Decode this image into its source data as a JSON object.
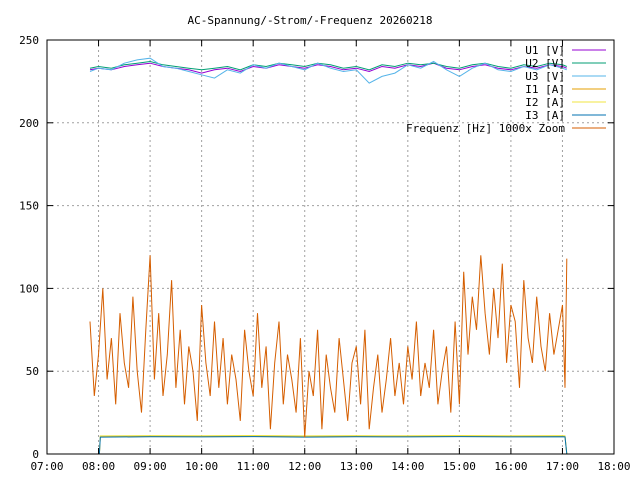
{
  "chart_data": {
    "type": "line",
    "title": "AC-Spannung/-Strom/-Frequenz 20260218",
    "xlabel": "",
    "ylabel": "",
    "x_range": [
      "07:00",
      "18:00"
    ],
    "x_ticks": [
      "07:00",
      "08:00",
      "09:00",
      "10:00",
      "11:00",
      "12:00",
      "13:00",
      "14:00",
      "15:00",
      "16:00",
      "17:00",
      "18:00"
    ],
    "ylim": [
      0,
      250
    ],
    "y_ticks": [
      "0",
      "50",
      "100",
      "150",
      "200",
      "250"
    ],
    "grid": true,
    "legend_position": "top-right",
    "series": [
      {
        "name": "U1 [V]",
        "color": "#9400d3",
        "x": [
          "07:50",
          "08:00",
          "08:15",
          "08:30",
          "08:45",
          "09:00",
          "09:15",
          "09:30",
          "09:45",
          "10:00",
          "10:15",
          "10:30",
          "10:45",
          "11:00",
          "11:15",
          "11:30",
          "11:45",
          "12:00",
          "12:15",
          "12:30",
          "12:45",
          "13:00",
          "13:15",
          "13:30",
          "13:45",
          "14:00",
          "14:15",
          "14:30",
          "14:45",
          "15:00",
          "15:15",
          "15:30",
          "15:45",
          "16:00",
          "16:15",
          "16:30",
          "16:45",
          "17:00",
          "17:05"
        ],
        "values": [
          232,
          233,
          232,
          234,
          235,
          236,
          234,
          233,
          232,
          230,
          232,
          233,
          231,
          234,
          233,
          235,
          234,
          233,
          235,
          234,
          232,
          233,
          231,
          234,
          233,
          235,
          234,
          236,
          233,
          232,
          234,
          235,
          233,
          232,
          234,
          233,
          235,
          234,
          233
        ]
      },
      {
        "name": "U2 [V]",
        "color": "#009e73",
        "x": [
          "07:50",
          "08:00",
          "08:15",
          "08:30",
          "08:45",
          "09:00",
          "09:15",
          "09:30",
          "09:45",
          "10:00",
          "10:15",
          "10:30",
          "10:45",
          "11:00",
          "11:15",
          "11:30",
          "11:45",
          "12:00",
          "12:15",
          "12:30",
          "12:45",
          "13:00",
          "13:15",
          "13:30",
          "13:45",
          "14:00",
          "14:15",
          "14:30",
          "14:45",
          "15:00",
          "15:15",
          "15:30",
          "15:45",
          "16:00",
          "16:15",
          "16:30",
          "16:45",
          "17:00",
          "17:05"
        ],
        "values": [
          233,
          234,
          233,
          235,
          236,
          237,
          235,
          234,
          233,
          232,
          233,
          234,
          232,
          235,
          234,
          236,
          235,
          234,
          236,
          235,
          233,
          234,
          232,
          235,
          234,
          236,
          235,
          236,
          234,
          233,
          235,
          236,
          234,
          233,
          235,
          234,
          236,
          235,
          234
        ]
      },
      {
        "name": "U3 [V]",
        "color": "#56b4e9",
        "x": [
          "07:50",
          "08:00",
          "08:15",
          "08:30",
          "08:45",
          "09:00",
          "09:15",
          "09:30",
          "09:45",
          "10:00",
          "10:15",
          "10:30",
          "10:45",
          "11:00",
          "11:15",
          "11:30",
          "11:45",
          "12:00",
          "12:15",
          "12:30",
          "12:45",
          "13:00",
          "13:15",
          "13:30",
          "13:45",
          "14:00",
          "14:15",
          "14:30",
          "14:45",
          "15:00",
          "15:15",
          "15:30",
          "15:45",
          "16:00",
          "16:15",
          "16:30",
          "16:45",
          "17:00",
          "17:05"
        ],
        "values": [
          231,
          233,
          232,
          236,
          238,
          239,
          234,
          233,
          231,
          229,
          227,
          232,
          230,
          235,
          233,
          236,
          234,
          232,
          236,
          233,
          231,
          232,
          224,
          228,
          230,
          235,
          233,
          237,
          232,
          228,
          233,
          236,
          232,
          231,
          234,
          232,
          235,
          233,
          232
        ]
      },
      {
        "name": "I1 [A]",
        "color": "#e69f00",
        "x": [
          "07:58",
          "08:01",
          "08:02",
          "09:00",
          "10:00",
          "11:00",
          "12:00",
          "13:00",
          "14:00",
          "15:00",
          "16:00",
          "17:00",
          "17:03",
          "17:05"
        ],
        "values": [
          0,
          0,
          10.5,
          10.8,
          10.6,
          10.9,
          10.5,
          10.8,
          10.7,
          10.9,
          10.6,
          10.8,
          10.7,
          0
        ]
      },
      {
        "name": "I2 [A]",
        "color": "#f0e442",
        "x": [
          "07:58",
          "08:01",
          "08:02",
          "09:00",
          "10:00",
          "11:00",
          "12:00",
          "13:00",
          "14:00",
          "15:00",
          "16:00",
          "17:00",
          "17:03",
          "17:05"
        ],
        "values": [
          0,
          0,
          10.9,
          11.1,
          11.0,
          11.2,
          10.9,
          11.1,
          11.0,
          11.2,
          11.0,
          11.1,
          11.0,
          0
        ]
      },
      {
        "name": "I3 [A]",
        "color": "#0072b2",
        "x": [
          "07:58",
          "08:01",
          "08:02",
          "09:00",
          "10:00",
          "11:00",
          "12:00",
          "13:00",
          "14:00",
          "15:00",
          "16:00",
          "17:00",
          "17:03",
          "17:05"
        ],
        "values": [
          0,
          0,
          10.2,
          10.4,
          10.3,
          10.5,
          10.2,
          10.4,
          10.3,
          10.5,
          10.3,
          10.4,
          10.3,
          0
        ]
      },
      {
        "name": "Frequenz [Hz] 1000x Zoom",
        "color": "#d55e00",
        "x": [
          "07:50",
          "07:55",
          "08:00",
          "08:05",
          "08:10",
          "08:15",
          "08:20",
          "08:25",
          "08:30",
          "08:35",
          "08:40",
          "08:45",
          "08:50",
          "08:55",
          "09:00",
          "09:05",
          "09:10",
          "09:15",
          "09:20",
          "09:25",
          "09:30",
          "09:35",
          "09:40",
          "09:45",
          "09:50",
          "09:55",
          "10:00",
          "10:05",
          "10:10",
          "10:15",
          "10:20",
          "10:25",
          "10:30",
          "10:35",
          "10:40",
          "10:45",
          "10:50",
          "10:55",
          "11:00",
          "11:05",
          "11:10",
          "11:15",
          "11:20",
          "11:25",
          "11:30",
          "11:35",
          "11:40",
          "11:45",
          "11:50",
          "11:55",
          "12:00",
          "12:05",
          "12:10",
          "12:15",
          "12:20",
          "12:25",
          "12:30",
          "12:35",
          "12:40",
          "12:45",
          "12:50",
          "12:55",
          "13:00",
          "13:05",
          "13:10",
          "13:15",
          "13:20",
          "13:25",
          "13:30",
          "13:35",
          "13:40",
          "13:45",
          "13:50",
          "13:55",
          "14:00",
          "14:05",
          "14:10",
          "14:15",
          "14:20",
          "14:25",
          "14:30",
          "14:35",
          "14:40",
          "14:45",
          "14:50",
          "14:55",
          "15:00",
          "15:05",
          "15:10",
          "15:15",
          "15:20",
          "15:25",
          "15:30",
          "15:35",
          "15:40",
          "15:45",
          "15:50",
          "15:55",
          "16:00",
          "16:05",
          "16:10",
          "16:15",
          "16:20",
          "16:25",
          "16:30",
          "16:35",
          "16:40",
          "16:45",
          "16:50",
          "16:55",
          "17:00",
          "17:03",
          "17:05"
        ],
        "values": [
          80,
          35,
          60,
          100,
          45,
          70,
          30,
          85,
          55,
          40,
          95,
          50,
          25,
          75,
          120,
          45,
          85,
          35,
          60,
          105,
          40,
          75,
          30,
          65,
          50,
          20,
          90,
          55,
          35,
          80,
          40,
          70,
          30,
          60,
          45,
          20,
          75,
          50,
          35,
          85,
          40,
          65,
          15,
          55,
          80,
          30,
          60,
          45,
          25,
          70,
          10,
          50,
          35,
          75,
          15,
          60,
          40,
          25,
          70,
          45,
          20,
          55,
          65,
          30,
          75,
          15,
          40,
          60,
          25,
          45,
          70,
          35,
          55,
          30,
          65,
          45,
          80,
          35,
          55,
          40,
          75,
          30,
          50,
          65,
          25,
          80,
          30,
          110,
          60,
          95,
          75,
          120,
          85,
          60,
          100,
          70,
          115,
          55,
          90,
          80,
          40,
          105,
          70,
          55,
          95,
          65,
          50,
          85,
          60,
          75,
          90,
          40,
          118
        ]
      }
    ]
  }
}
